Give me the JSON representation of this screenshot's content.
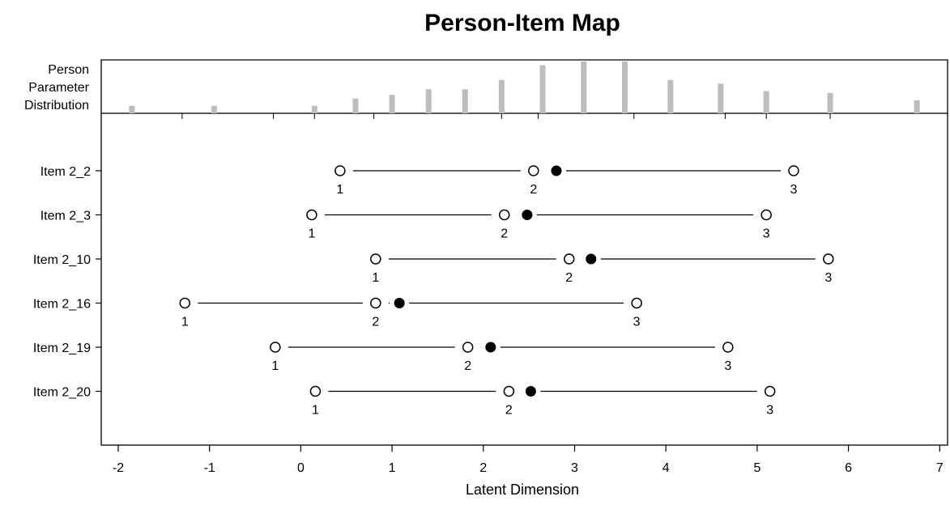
{
  "chart_data": {
    "type": "person-item map",
    "title": "Person-Item Map",
    "xlabel": "Latent Dimension",
    "xlim": [
      -2.2,
      7.05
    ],
    "x_ticks": [
      -2,
      -1,
      0,
      1,
      2,
      3,
      4,
      5,
      6,
      7
    ],
    "grid": false,
    "person_distribution": {
      "label_lines": [
        "Person",
        "Parameter",
        "Distribution"
      ],
      "bars": [
        {
          "x": -1.85,
          "value": 2
        },
        {
          "x": -0.95,
          "value": 2
        },
        {
          "x": 0.15,
          "value": 2
        },
        {
          "x": 0.6,
          "value": 4
        },
        {
          "x": 1.0,
          "value": 5
        },
        {
          "x": 1.4,
          "value": 6.5
        },
        {
          "x": 1.8,
          "value": 6.5
        },
        {
          "x": 2.2,
          "value": 9
        },
        {
          "x": 2.65,
          "value": 13
        },
        {
          "x": 3.1,
          "value": 14
        },
        {
          "x": 3.55,
          "value": 14
        },
        {
          "x": 4.05,
          "value": 9
        },
        {
          "x": 4.6,
          "value": 8
        },
        {
          "x": 5.1,
          "value": 6
        },
        {
          "x": 5.8,
          "value": 5.5
        },
        {
          "x": 6.75,
          "value": 3.5
        }
      ],
      "ticks_x": [
        -1.3,
        -0.3,
        0.15,
        0.8,
        2.2,
        2.6,
        3.65,
        4.65,
        5.1,
        5.8
      ]
    },
    "items": [
      {
        "label": "Item 2_2",
        "thresholds": [
          0.43,
          2.55,
          5.4
        ],
        "threshold_labels": [
          "1",
          "2",
          "3"
        ],
        "location": 2.8
      },
      {
        "label": "Item 2_3",
        "thresholds": [
          0.12,
          2.23,
          5.1
        ],
        "threshold_labels": [
          "1",
          "2",
          "3"
        ],
        "location": 2.48
      },
      {
        "label": "Item 2_10",
        "thresholds": [
          0.82,
          2.94,
          5.78
        ],
        "threshold_labels": [
          "1",
          "2",
          "3"
        ],
        "location": 3.18
      },
      {
        "label": "Item 2_16",
        "thresholds": [
          -1.27,
          0.82,
          3.68
        ],
        "threshold_labels": [
          "1",
          "2",
          "3"
        ],
        "location": 1.08
      },
      {
        "label": "Item 2_19",
        "thresholds": [
          -0.28,
          1.83,
          4.68
        ],
        "threshold_labels": [
          "1",
          "2",
          "3"
        ],
        "location": 2.08
      },
      {
        "label": "Item 2_20",
        "thresholds": [
          0.16,
          2.28,
          5.14
        ],
        "threshold_labels": [
          "1",
          "2",
          "3"
        ],
        "location": 2.52
      }
    ],
    "colors": {
      "bar": "#bdbdbd",
      "axis": "#000000"
    }
  }
}
